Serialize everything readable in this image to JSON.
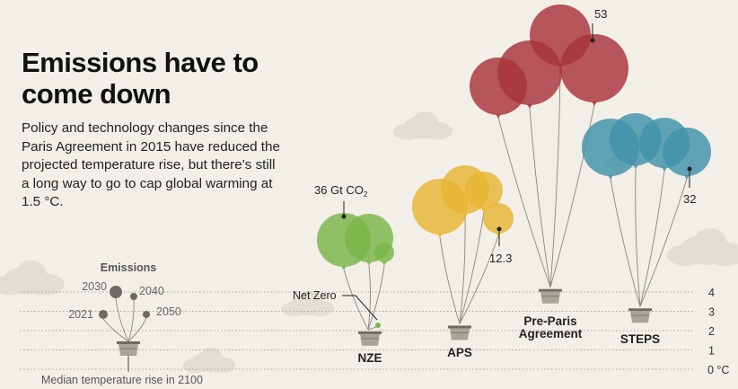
{
  "title": "Emissions have to come down",
  "subtitle": "Policy and technology changes since the Paris Agreement in 2015 have reduced the projected temperature rise, but there’s still a long way to go to cap global warming at 1.5 °C.",
  "chart_data": {
    "type": "balloon",
    "axis": {
      "label": "Median temperature rise in 2100",
      "ticks": [
        "0 °C",
        "1",
        "2",
        "3",
        "4"
      ],
      "ylim": [
        0,
        4
      ]
    },
    "legend": {
      "title": "Emissions",
      "years": [
        "2021",
        "2030",
        "2040",
        "2050"
      ]
    },
    "scenarios": [
      {
        "name": "NZE",
        "temperature": 1.4,
        "color": "#7ab648",
        "callout": "36 Gt CO",
        "callout_sub": "2",
        "end_label": "Net Zero"
      },
      {
        "name": "APS",
        "temperature": 1.7,
        "color": "#e8b532",
        "callout": "12.3"
      },
      {
        "name": "Pre-Paris\nAgreement",
        "temperature": 3.5,
        "color": "#a8333a",
        "callout": "53"
      },
      {
        "name": "STEPS",
        "temperature": 2.5,
        "color": "#3f93a9",
        "callout": "32"
      }
    ]
  }
}
